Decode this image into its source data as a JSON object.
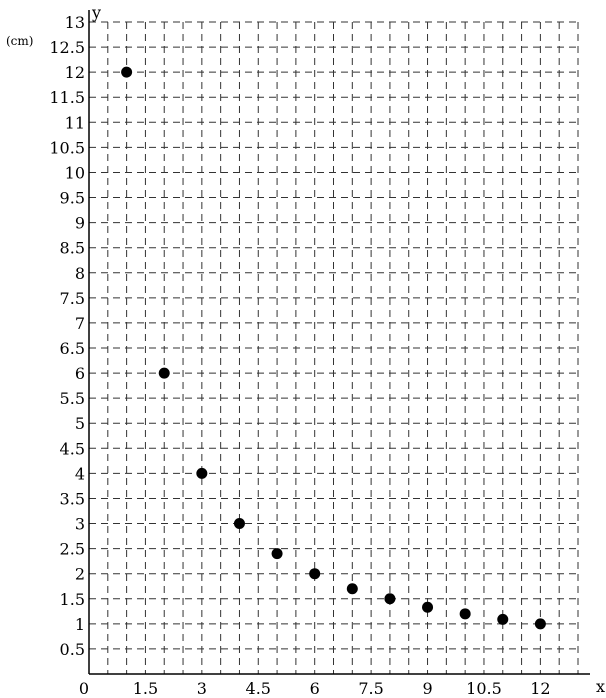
{
  "chart_data": {
    "type": "scatter",
    "xlabel": "x",
    "ylabel": "y",
    "y_unit": "(cm)",
    "xlim": [
      0,
      13
    ],
    "ylim": [
      0,
      13
    ],
    "grid": true,
    "x_ticks": [
      "0",
      "1.5",
      "3",
      "4.5",
      "6",
      "7.5",
      "9",
      "10.5",
      "12"
    ],
    "y_ticks": [
      "0",
      "0.5",
      "1",
      "1.5",
      "2",
      "2.5",
      "3",
      "3.5",
      "4",
      "4.5",
      "5",
      "5.5",
      "6",
      "6.5",
      "7",
      "7.5",
      "8",
      "8.5",
      "9",
      "9.5",
      "10",
      "10.5",
      "11",
      "11.5",
      "12",
      "12.5",
      "13"
    ],
    "points": [
      {
        "x": 1,
        "y": 12
      },
      {
        "x": 2,
        "y": 6
      },
      {
        "x": 3,
        "y": 4
      },
      {
        "x": 4,
        "y": 3
      },
      {
        "x": 5,
        "y": 2.4
      },
      {
        "x": 6,
        "y": 2
      },
      {
        "x": 7,
        "y": 1.7
      },
      {
        "x": 8,
        "y": 1.5
      },
      {
        "x": 9,
        "y": 1.33
      },
      {
        "x": 10,
        "y": 1.2
      },
      {
        "x": 11,
        "y": 1.09
      },
      {
        "x": 12,
        "y": 1
      }
    ]
  }
}
